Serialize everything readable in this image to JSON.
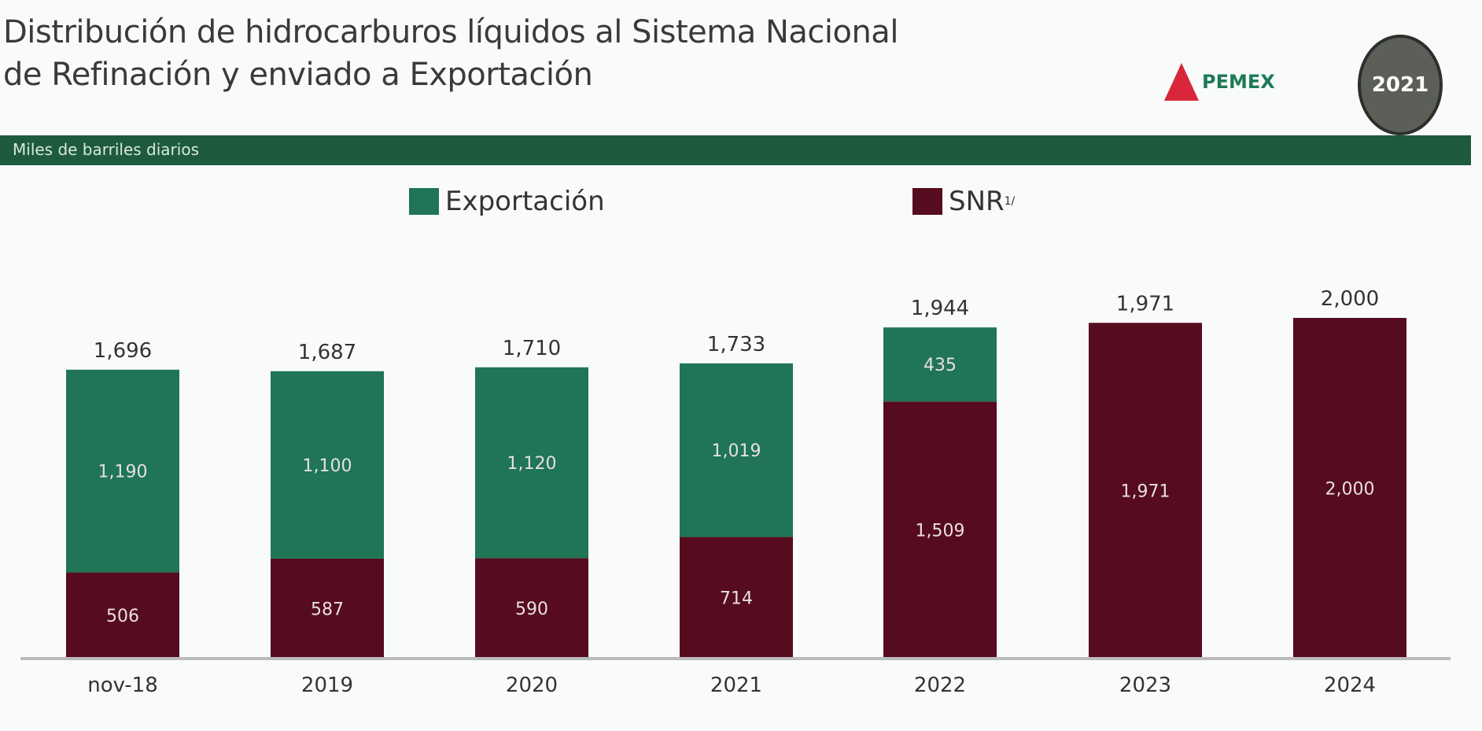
{
  "header": {
    "title_line1": "Distribución de hidrocarburos líquidos al Sistema Nacional",
    "title_line2": "de Refinación y enviado a Exportación",
    "band_label": "Miles de barriles diarios",
    "logo_text": "PEMEX",
    "seal_text": "2021"
  },
  "colors": {
    "export": "#1f7556",
    "snr": "#560b1f",
    "band": "#1e5a3e"
  },
  "chart_data": {
    "type": "bar",
    "stacked": true,
    "categories": [
      "nov-18",
      "2019",
      "2020",
      "2021",
      "2022",
      "2023",
      "2024"
    ],
    "series": [
      {
        "name": "SNR",
        "sup": "1/",
        "values": [
          506,
          587,
          590,
          714,
          1509,
          1971,
          2000
        ]
      },
      {
        "name": "Exportación",
        "values": [
          1190,
          1100,
          1120,
          1019,
          435,
          0,
          0
        ]
      }
    ],
    "totals": [
      "1,696",
      "1,687",
      "1,710",
      "1,733",
      "1,944",
      "1,971",
      "2,000"
    ],
    "ylabel": "Miles de barriles diarios",
    "legend": "top",
    "grid": false
  }
}
